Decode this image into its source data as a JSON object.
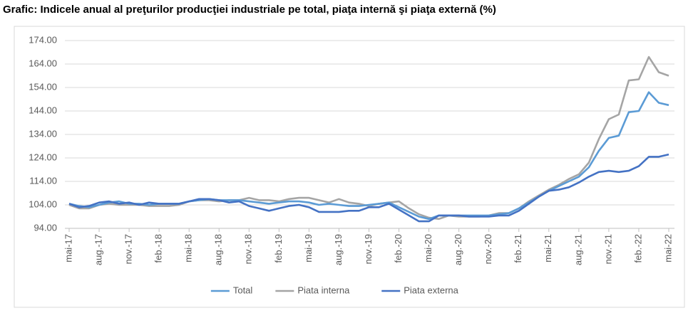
{
  "chart_data": {
    "type": "line",
    "title": "Grafic: Indicele anual al preţurilor producţiei industriale pe total, piaţa internă şi piaţa externă (%)",
    "categories": [
      "mai-17",
      null,
      null,
      "aug.-17",
      null,
      null,
      "nov.-17",
      null,
      null,
      "feb.-18",
      null,
      null,
      "mai-18",
      null,
      null,
      "aug.-18",
      null,
      null,
      "nov.-18",
      null,
      null,
      "feb.-19",
      null,
      null,
      "mai-19",
      null,
      null,
      "aug.-19",
      null,
      null,
      "nov.-19",
      null,
      null,
      "feb.-20",
      null,
      null,
      "mai-20",
      null,
      null,
      "aug.-20",
      null,
      null,
      "nov.-20",
      null,
      null,
      "feb.-21",
      null,
      null,
      "mai-21",
      null,
      null,
      "aug.-21",
      null,
      null,
      "nov.-21",
      null,
      null,
      "feb.-22",
      null,
      null,
      "mai-22"
    ],
    "series": [
      {
        "name": "Total",
        "color": "#5b9bd5",
        "values": [
          104.5,
          103.5,
          103,
          104,
          105,
          105.5,
          104.5,
          104.5,
          104,
          104.5,
          104.5,
          104.5,
          105.5,
          106,
          106.5,
          106,
          106,
          106,
          105.5,
          105,
          104.5,
          105,
          105.5,
          105.5,
          105,
          104,
          104.5,
          104,
          103.5,
          103.5,
          104,
          104.5,
          105,
          103,
          101,
          99,
          98,
          99.5,
          99.5,
          99.5,
          99.5,
          99.5,
          99.5,
          100,
          100.5,
          102.5,
          105,
          107.5,
          110,
          112,
          114,
          116,
          120,
          127,
          132.5,
          133.5,
          143.5,
          144,
          152,
          147.5,
          146.5
        ]
      },
      {
        "name": "Piata interna",
        "color": "#a5a5a5",
        "values": [
          104,
          102.5,
          102.5,
          104,
          104.5,
          104,
          104,
          104,
          103.5,
          103.5,
          103.5,
          104,
          105.5,
          106,
          106,
          105.5,
          106,
          106,
          107,
          106,
          106,
          105.5,
          106.5,
          107,
          107,
          106,
          105,
          106.5,
          105,
          104.5,
          103.5,
          104.5,
          105,
          105.5,
          102.5,
          100,
          98.5,
          98,
          99.5,
          99,
          99,
          99,
          99.5,
          100.5,
          100.5,
          102.5,
          105.5,
          108,
          110.5,
          112.5,
          115,
          117,
          122,
          132,
          140.5,
          142.5,
          157,
          157.5,
          167,
          160.5,
          159
        ]
      },
      {
        "name": "Piata externa",
        "color": "#4472c4",
        "values": [
          104.5,
          103,
          103.5,
          105,
          105.5,
          104.5,
          105,
          104,
          105,
          104.5,
          104.5,
          104.5,
          105.5,
          106.5,
          106.5,
          106,
          105,
          105.5,
          103.5,
          102.5,
          101.5,
          102.5,
          103.5,
          104,
          103,
          101,
          101,
          101,
          101.5,
          101.5,
          103,
          103,
          104.5,
          102,
          99.5,
          97,
          97,
          99.5,
          99.5,
          99.5,
          99,
          99,
          99,
          99.5,
          99.5,
          101.5,
          104.5,
          107.5,
          110,
          110.5,
          111.5,
          113.5,
          116,
          118,
          118.5,
          118,
          118.5,
          120.5,
          124.5,
          124.5,
          125.5
        ]
      }
    ],
    "ylim": [
      94,
      174
    ],
    "yticks": [
      {
        "value": 94,
        "label": "94.00"
      },
      {
        "value": 104,
        "label": "104.00"
      },
      {
        "value": 114,
        "label": "114.00"
      },
      {
        "value": 124,
        "label": "124.00"
      },
      {
        "value": 134,
        "label": "134.00"
      },
      {
        "value": 144,
        "label": "144.00"
      },
      {
        "value": 154,
        "label": "154.00"
      },
      {
        "value": 164,
        "label": "164.00"
      },
      {
        "value": 174,
        "label": "174.00"
      }
    ],
    "grid": true,
    "legend": "bottom"
  }
}
